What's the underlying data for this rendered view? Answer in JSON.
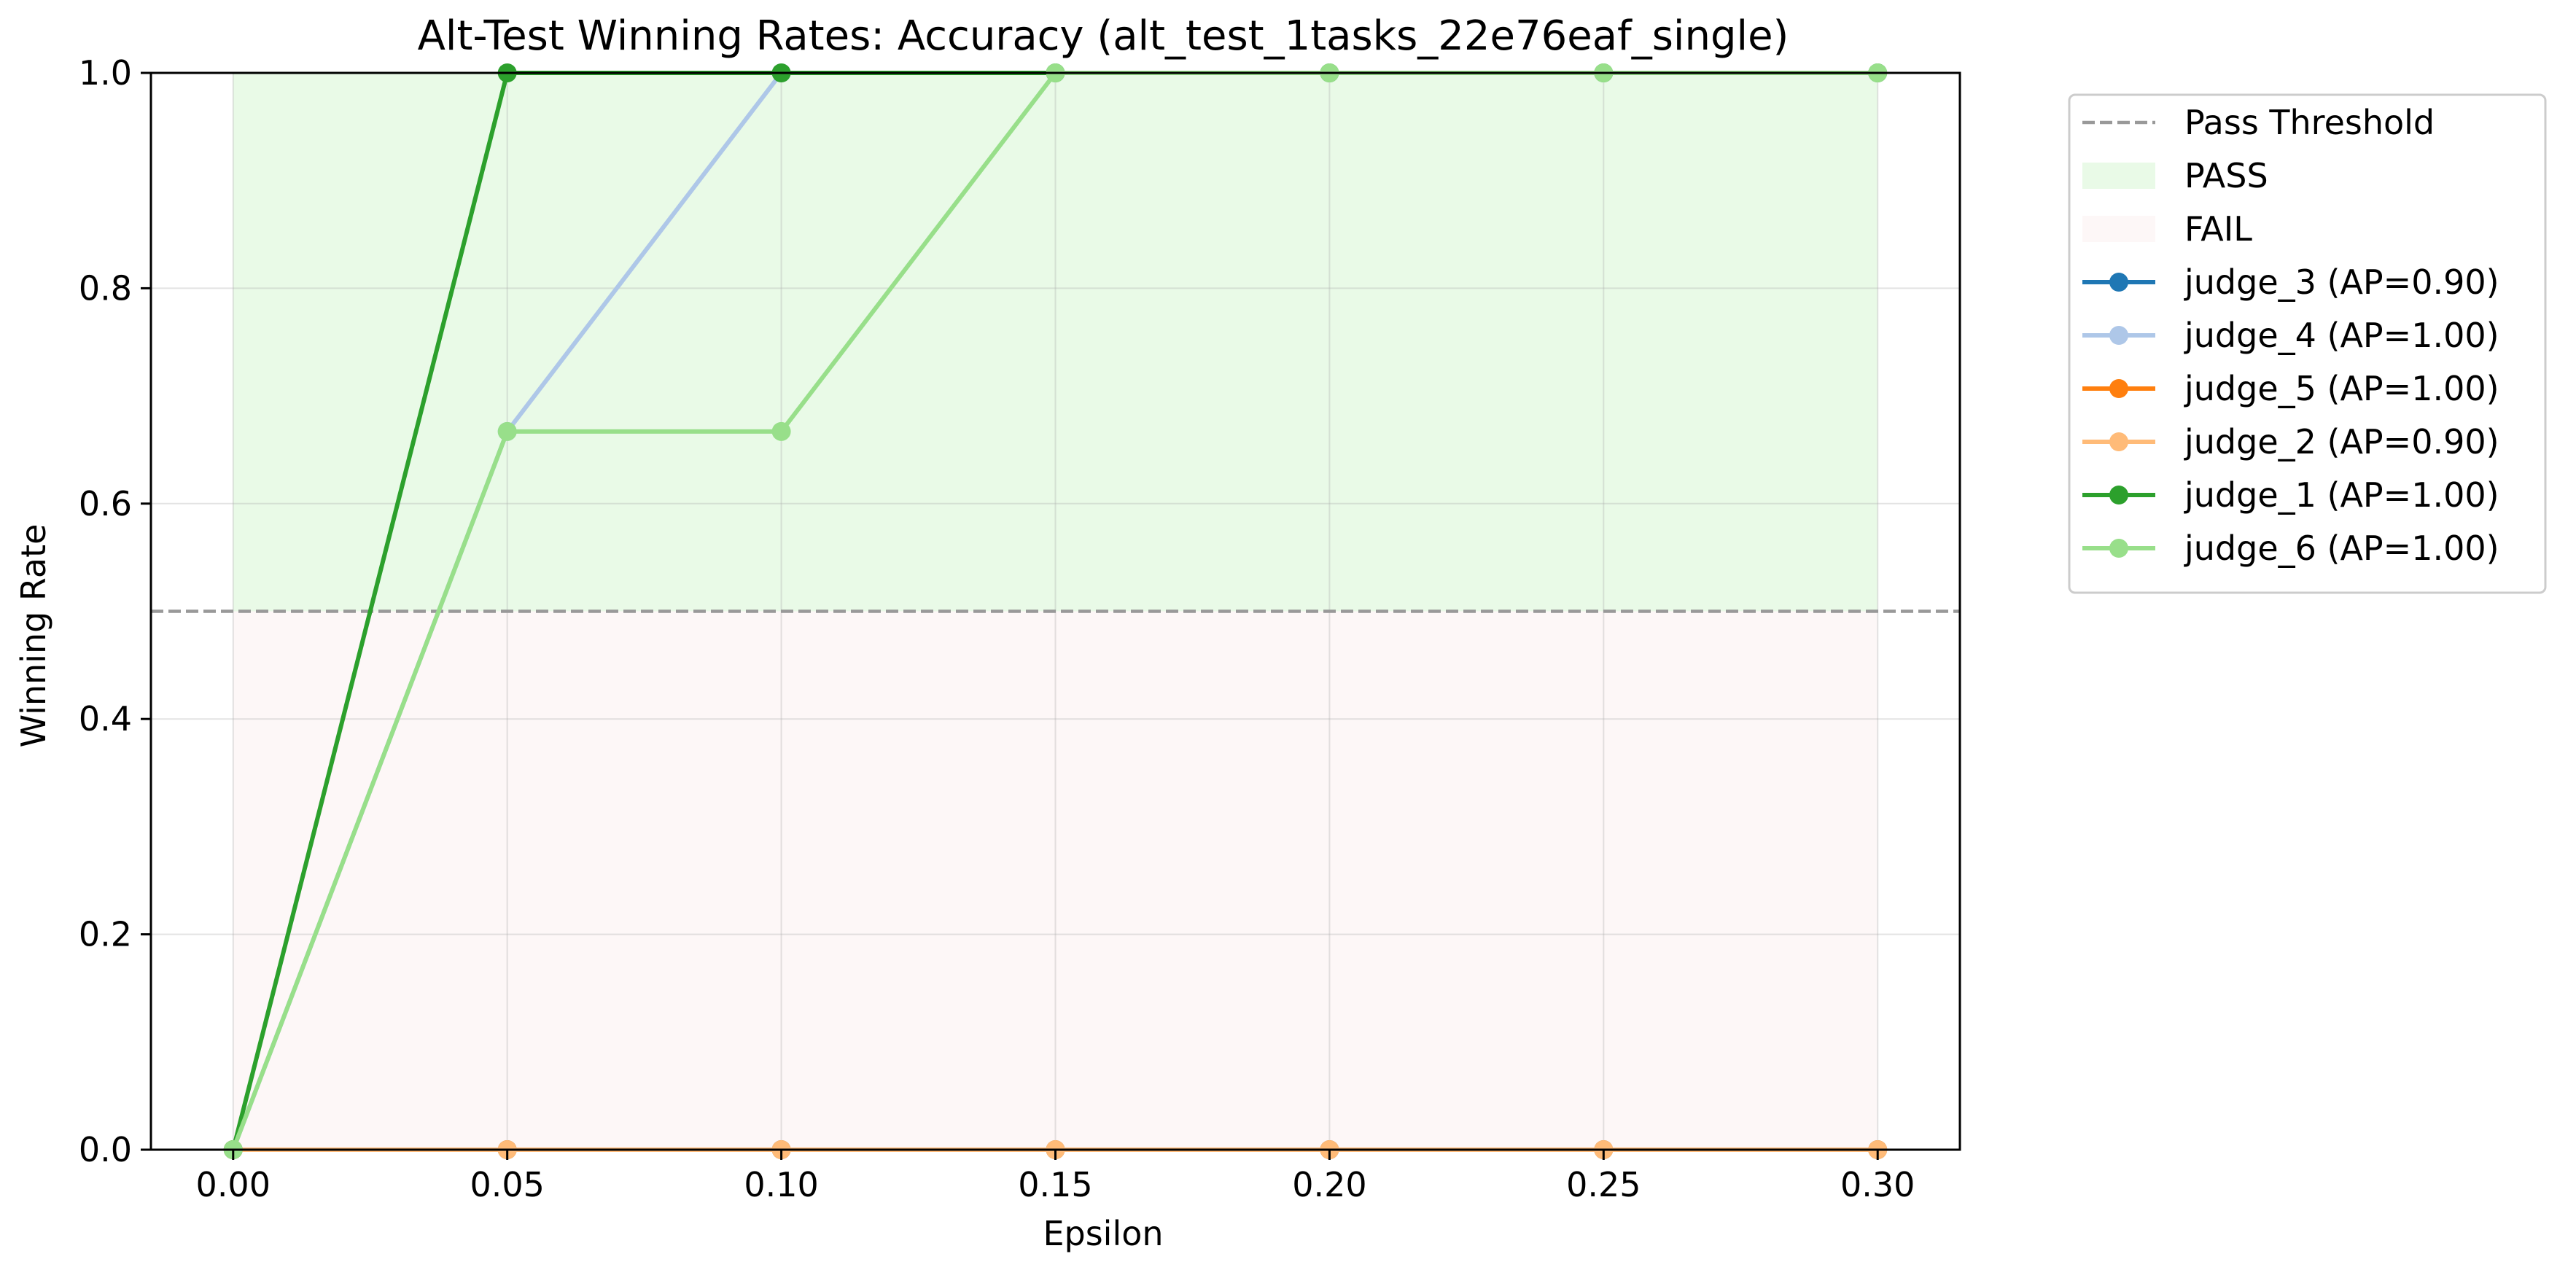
{
  "chart_data": {
    "type": "line",
    "title": "Alt-Test Winning Rates: Accuracy (alt_test_1tasks_22e76eaf_single)",
    "xlabel": "Epsilon",
    "ylabel": "Winning Rate",
    "x": [
      0.0,
      0.05,
      0.1,
      0.15,
      0.2,
      0.25,
      0.3
    ],
    "x_tick_labels": [
      "0.00",
      "0.05",
      "0.10",
      "0.15",
      "0.20",
      "0.25",
      "0.30"
    ],
    "y_ticks": [
      0.0,
      0.2,
      0.4,
      0.6,
      0.8,
      1.0
    ],
    "y_tick_labels": [
      "0.0",
      "0.2",
      "0.4",
      "0.6",
      "0.8",
      "1.0"
    ],
    "xlim": [
      -0.015,
      0.315
    ],
    "ylim": [
      0.0,
      1.0
    ],
    "grid": true,
    "legend_position": "outside-right-top",
    "threshold": {
      "label": "Pass Threshold",
      "value": 0.5,
      "color": "#999999"
    },
    "regions": [
      {
        "label": "PASS",
        "from": 0.5,
        "to": 1.0,
        "color": "#d7f5d3"
      },
      {
        "label": "FAIL",
        "from": 0.0,
        "to": 0.5,
        "color": "#fbeeee"
      }
    ],
    "series": [
      {
        "name": "judge_3 (AP=0.90)",
        "color": "#1f77b4",
        "values": [
          0,
          0,
          0,
          0,
          0,
          0,
          0
        ]
      },
      {
        "name": "judge_4 (AP=1.00)",
        "color": "#aec7e8",
        "values": [
          0,
          0.667,
          1,
          1,
          1,
          1,
          1
        ]
      },
      {
        "name": "judge_5 (AP=1.00)",
        "color": "#ff7f0e",
        "values": [
          0,
          0,
          0,
          0,
          0,
          0,
          0
        ]
      },
      {
        "name": "judge_2 (AP=0.90)",
        "color": "#ffbb78",
        "values": [
          0,
          0,
          0,
          0,
          0,
          0,
          0
        ]
      },
      {
        "name": "judge_1 (AP=1.00)",
        "color": "#2ca02c",
        "values": [
          0,
          1,
          1,
          1,
          1,
          1,
          1
        ]
      },
      {
        "name": "judge_6 (AP=1.00)",
        "color": "#98df8a",
        "values": [
          0,
          0.667,
          0.667,
          1,
          1,
          1,
          1
        ]
      }
    ]
  }
}
